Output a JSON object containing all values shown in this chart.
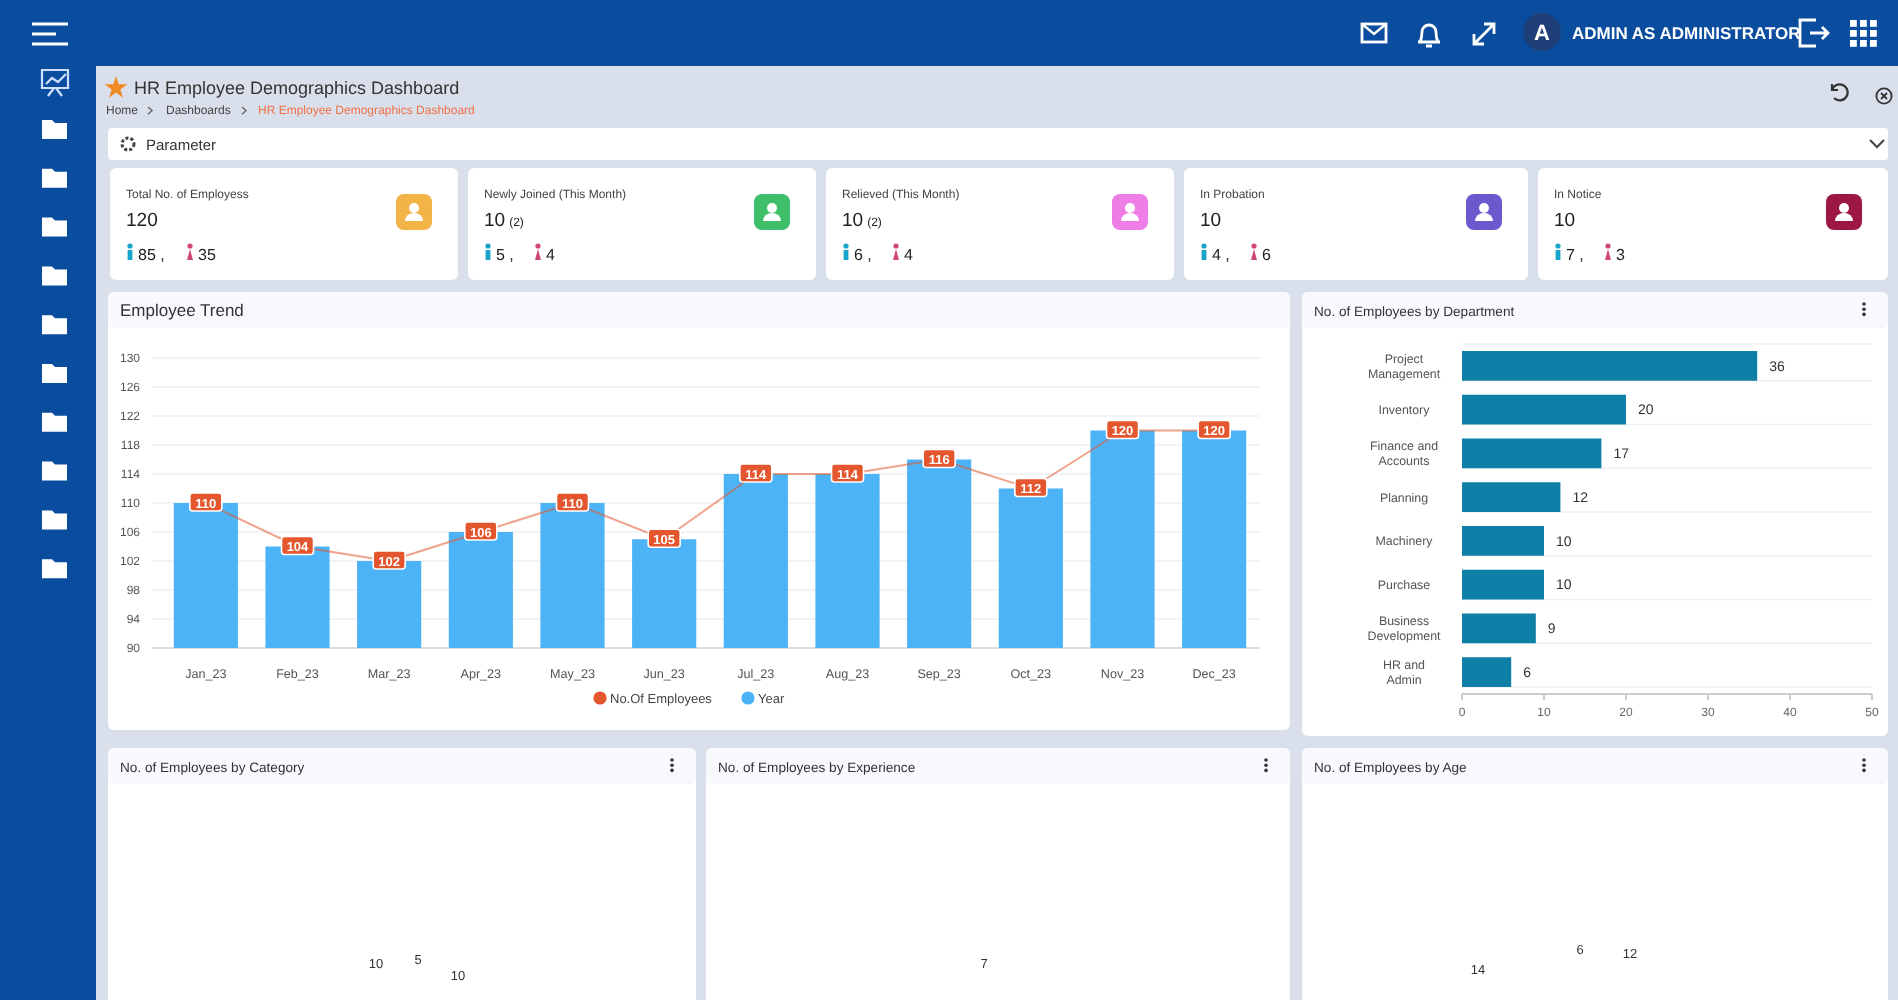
{
  "chart_data": [
    {
      "type": "other",
      "title": "HR Employee Demographics Dashboard",
      "annotations": [
        "Home",
        "Dashboards",
        "HR Employee Demographics Dashboard",
        "Parameter",
        "A",
        "ADMIN AS ADMINISTRATOR"
      ]
    },
    {
      "type": "other",
      "title": "Total No. of Employess",
      "annotations": [
        "120",
        "85 ,",
        "35"
      ]
    },
    {
      "type": "other",
      "title": "Newly Joined (This Month)",
      "annotations": [
        "10",
        "(2)",
        "5 ,",
        "4"
      ]
    },
    {
      "type": "other",
      "title": "Relieved (This Month)",
      "annotations": [
        "10",
        "(2)",
        "6 ,",
        "4"
      ]
    },
    {
      "type": "other",
      "title": "In Probation",
      "annotations": [
        "10",
        "4 ,",
        "6"
      ]
    },
    {
      "type": "other",
      "title": "In Notice",
      "annotations": [
        "10",
        "7 ,",
        "3"
      ]
    },
    {
      "type": "bar",
      "title": "Employee Trend",
      "categories": [
        "Jan_23",
        "Feb_23",
        "Mar_23",
        "Apr_23",
        "May_23",
        "Jun_23",
        "Jul_23",
        "Aug_23",
        "Sep_23",
        "Oct_23",
        "Nov_23",
        "Dec_23"
      ],
      "series": [
        {
          "name": "No.Of Employees",
          "type": "line",
          "color": "#e4572e",
          "marker": "square",
          "values": [
            110,
            104,
            102,
            106,
            110,
            105,
            114,
            114,
            116,
            112,
            120,
            120
          ],
          "value_labels": [
            "110",
            "104",
            "102",
            "106",
            "110",
            "105",
            "114",
            "114",
            "116",
            "112",
            "120",
            "120"
          ]
        },
        {
          "name": "Year",
          "type": "bar",
          "color": "#4db3f7",
          "values": [
            110,
            104,
            102,
            106,
            110,
            105,
            114,
            114,
            116,
            112,
            120,
            120
          ]
        }
      ],
      "ylim": [
        90,
        130
      ],
      "yticks": [
        90,
        94,
        98,
        102,
        106,
        110,
        114,
        118,
        122,
        126,
        130
      ],
      "grid": "y",
      "legend": "bottom"
    },
    {
      "type": "bar",
      "orientation": "horizontal",
      "title": "No. of Employees by Department",
      "categories": [
        "Project Management",
        "Inventory",
        "Finance and Accounts",
        "Planning",
        "Machinery",
        "Purchase",
        "Business Development",
        "HR and Admin"
      ],
      "values": [
        36,
        20,
        17,
        12,
        10,
        10,
        9,
        6
      ],
      "color": "#0e7fa6",
      "xlim": [
        0,
        50
      ],
      "xticks": [
        0,
        10,
        20,
        30,
        40,
        50
      ],
      "grid": "y",
      "data_labels": true
    },
    {
      "type": "other",
      "title": "No. of Employees by Category",
      "annotations": [
        "10",
        "5",
        "10"
      ]
    },
    {
      "type": "other",
      "title": "No. of Employees by Experience",
      "annotations": [
        "7"
      ]
    },
    {
      "type": "other",
      "title": "No. of Employees by Age",
      "annotations": [
        "14",
        "6",
        "12"
      ]
    }
  ]
}
